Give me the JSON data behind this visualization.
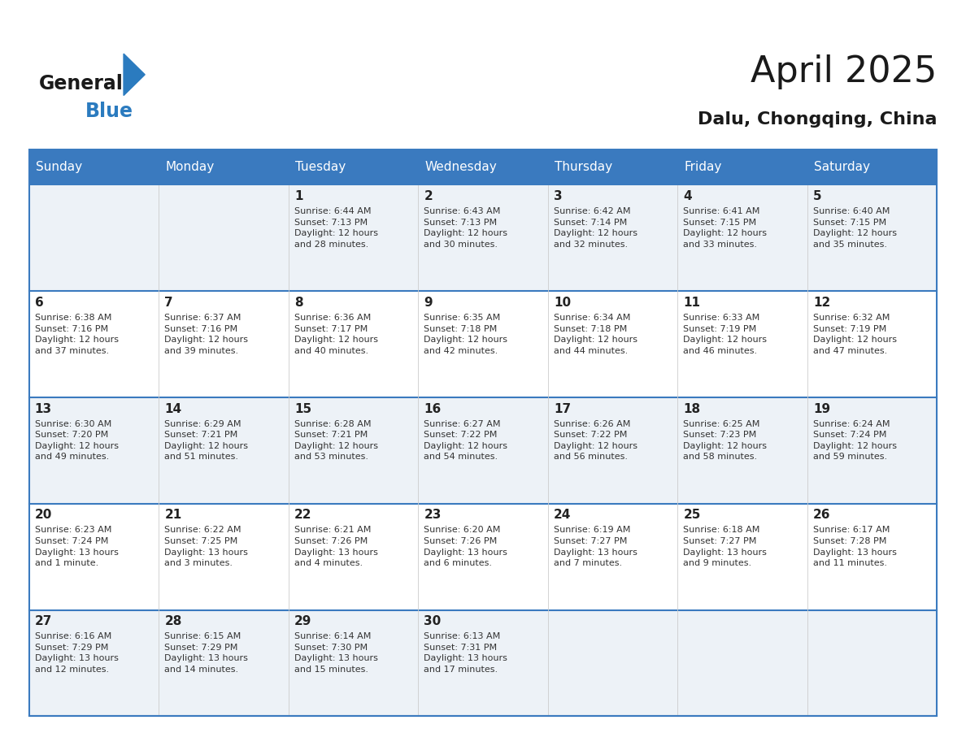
{
  "title": "April 2025",
  "subtitle": "Dalu, Chongqing, China",
  "header_bg_color": "#3a7abf",
  "header_text_color": "#ffffff",
  "day_headers": [
    "Sunday",
    "Monday",
    "Tuesday",
    "Wednesday",
    "Thursday",
    "Friday",
    "Saturday"
  ],
  "weeks": [
    [
      {
        "day": "",
        "info": ""
      },
      {
        "day": "",
        "info": ""
      },
      {
        "day": "1",
        "info": "Sunrise: 6:44 AM\nSunset: 7:13 PM\nDaylight: 12 hours\nand 28 minutes."
      },
      {
        "day": "2",
        "info": "Sunrise: 6:43 AM\nSunset: 7:13 PM\nDaylight: 12 hours\nand 30 minutes."
      },
      {
        "day": "3",
        "info": "Sunrise: 6:42 AM\nSunset: 7:14 PM\nDaylight: 12 hours\nand 32 minutes."
      },
      {
        "day": "4",
        "info": "Sunrise: 6:41 AM\nSunset: 7:15 PM\nDaylight: 12 hours\nand 33 minutes."
      },
      {
        "day": "5",
        "info": "Sunrise: 6:40 AM\nSunset: 7:15 PM\nDaylight: 12 hours\nand 35 minutes."
      }
    ],
    [
      {
        "day": "6",
        "info": "Sunrise: 6:38 AM\nSunset: 7:16 PM\nDaylight: 12 hours\nand 37 minutes."
      },
      {
        "day": "7",
        "info": "Sunrise: 6:37 AM\nSunset: 7:16 PM\nDaylight: 12 hours\nand 39 minutes."
      },
      {
        "day": "8",
        "info": "Sunrise: 6:36 AM\nSunset: 7:17 PM\nDaylight: 12 hours\nand 40 minutes."
      },
      {
        "day": "9",
        "info": "Sunrise: 6:35 AM\nSunset: 7:18 PM\nDaylight: 12 hours\nand 42 minutes."
      },
      {
        "day": "10",
        "info": "Sunrise: 6:34 AM\nSunset: 7:18 PM\nDaylight: 12 hours\nand 44 minutes."
      },
      {
        "day": "11",
        "info": "Sunrise: 6:33 AM\nSunset: 7:19 PM\nDaylight: 12 hours\nand 46 minutes."
      },
      {
        "day": "12",
        "info": "Sunrise: 6:32 AM\nSunset: 7:19 PM\nDaylight: 12 hours\nand 47 minutes."
      }
    ],
    [
      {
        "day": "13",
        "info": "Sunrise: 6:30 AM\nSunset: 7:20 PM\nDaylight: 12 hours\nand 49 minutes."
      },
      {
        "day": "14",
        "info": "Sunrise: 6:29 AM\nSunset: 7:21 PM\nDaylight: 12 hours\nand 51 minutes."
      },
      {
        "day": "15",
        "info": "Sunrise: 6:28 AM\nSunset: 7:21 PM\nDaylight: 12 hours\nand 53 minutes."
      },
      {
        "day": "16",
        "info": "Sunrise: 6:27 AM\nSunset: 7:22 PM\nDaylight: 12 hours\nand 54 minutes."
      },
      {
        "day": "17",
        "info": "Sunrise: 6:26 AM\nSunset: 7:22 PM\nDaylight: 12 hours\nand 56 minutes."
      },
      {
        "day": "18",
        "info": "Sunrise: 6:25 AM\nSunset: 7:23 PM\nDaylight: 12 hours\nand 58 minutes."
      },
      {
        "day": "19",
        "info": "Sunrise: 6:24 AM\nSunset: 7:24 PM\nDaylight: 12 hours\nand 59 minutes."
      }
    ],
    [
      {
        "day": "20",
        "info": "Sunrise: 6:23 AM\nSunset: 7:24 PM\nDaylight: 13 hours\nand 1 minute."
      },
      {
        "day": "21",
        "info": "Sunrise: 6:22 AM\nSunset: 7:25 PM\nDaylight: 13 hours\nand 3 minutes."
      },
      {
        "day": "22",
        "info": "Sunrise: 6:21 AM\nSunset: 7:26 PM\nDaylight: 13 hours\nand 4 minutes."
      },
      {
        "day": "23",
        "info": "Sunrise: 6:20 AM\nSunset: 7:26 PM\nDaylight: 13 hours\nand 6 minutes."
      },
      {
        "day": "24",
        "info": "Sunrise: 6:19 AM\nSunset: 7:27 PM\nDaylight: 13 hours\nand 7 minutes."
      },
      {
        "day": "25",
        "info": "Sunrise: 6:18 AM\nSunset: 7:27 PM\nDaylight: 13 hours\nand 9 minutes."
      },
      {
        "day": "26",
        "info": "Sunrise: 6:17 AM\nSunset: 7:28 PM\nDaylight: 13 hours\nand 11 minutes."
      }
    ],
    [
      {
        "day": "27",
        "info": "Sunrise: 6:16 AM\nSunset: 7:29 PM\nDaylight: 13 hours\nand 12 minutes."
      },
      {
        "day": "28",
        "info": "Sunrise: 6:15 AM\nSunset: 7:29 PM\nDaylight: 13 hours\nand 14 minutes."
      },
      {
        "day": "29",
        "info": "Sunrise: 6:14 AM\nSunset: 7:30 PM\nDaylight: 13 hours\nand 15 minutes."
      },
      {
        "day": "30",
        "info": "Sunrise: 6:13 AM\nSunset: 7:31 PM\nDaylight: 13 hours\nand 17 minutes."
      },
      {
        "day": "",
        "info": ""
      },
      {
        "day": "",
        "info": ""
      },
      {
        "day": "",
        "info": ""
      }
    ]
  ],
  "n_weeks": 5,
  "n_days": 7,
  "fig_width": 11.88,
  "fig_height": 9.18,
  "logo_text_general": "General",
  "logo_text_blue": "Blue",
  "logo_color_general": "#1a1a1a",
  "logo_color_blue": "#2b7bbf",
  "logo_triangle_color": "#2b7bbf",
  "title_fontsize": 32,
  "subtitle_fontsize": 16,
  "header_fontsize": 11,
  "day_num_fontsize": 11,
  "info_fontsize": 8,
  "border_color": "#3a7abf",
  "row_line_color": "#3a7abf",
  "col_line_color": "#cccccc",
  "cell_bg_color": "#edf2f7",
  "alt_cell_bg_color": "#ffffff"
}
